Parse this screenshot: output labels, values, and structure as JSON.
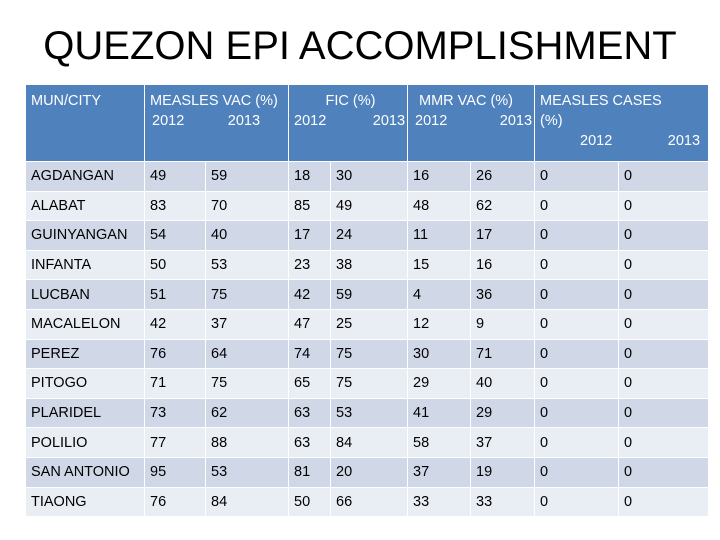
{
  "title": "QUEZON EPI ACCOMPLISHMENT",
  "header": {
    "col1": "MUN/CITY",
    "measles_vac": "MEASLES VAC (%)",
    "fic": "FIC (%)",
    "mmr_vac": "MMR VAC (%)",
    "measles_cases": "MEASLES CASES",
    "measles_cases_unit": "(%)",
    "year_a": "2012",
    "year_b": "2013"
  },
  "rows": [
    {
      "name": "AGDANGAN",
      "values": [
        "49",
        "59",
        "18",
        "30",
        "16",
        "26",
        "0",
        "0"
      ]
    },
    {
      "name": "ALABAT",
      "values": [
        "83",
        "70",
        "85",
        "49",
        "48",
        "62",
        "0",
        "0"
      ]
    },
    {
      "name": "GUINYANGAN",
      "values": [
        "54",
        "40",
        "17",
        "24",
        "11",
        "17",
        "0",
        "0"
      ]
    },
    {
      "name": "INFANTA",
      "values": [
        "50",
        "53",
        "23",
        "38",
        "15",
        "16",
        "0",
        "0"
      ]
    },
    {
      "name": "LUCBAN",
      "values": [
        "51",
        "75",
        "42",
        "59",
        "4",
        "36",
        "0",
        "0"
      ]
    },
    {
      "name": "MACALELON",
      "values": [
        "42",
        "37",
        "47",
        "25",
        "12",
        "9",
        "0",
        "0"
      ]
    },
    {
      "name": "PEREZ",
      "values": [
        "76",
        "64",
        "74",
        "75",
        "30",
        "71",
        "0",
        "0"
      ]
    },
    {
      "name": "PITOGO",
      "values": [
        "71",
        "75",
        "65",
        "75",
        "29",
        "40",
        "0",
        "0"
      ]
    },
    {
      "name": "PLARIDEL",
      "values": [
        "73",
        "62",
        "63",
        "53",
        "41",
        "29",
        "0",
        "0"
      ]
    },
    {
      "name": "POLILIO",
      "values": [
        "77",
        "88",
        "63",
        "84",
        "58",
        "37",
        "0",
        "0"
      ]
    },
    {
      "name": "SAN ANTONIO",
      "values": [
        "95",
        "53",
        "81",
        "20",
        "37",
        "19",
        "0",
        "0"
      ]
    },
    {
      "name": "TIAONG",
      "values": [
        "76",
        "84",
        "50",
        "66",
        "33",
        "33",
        "0",
        "0"
      ]
    }
  ]
}
